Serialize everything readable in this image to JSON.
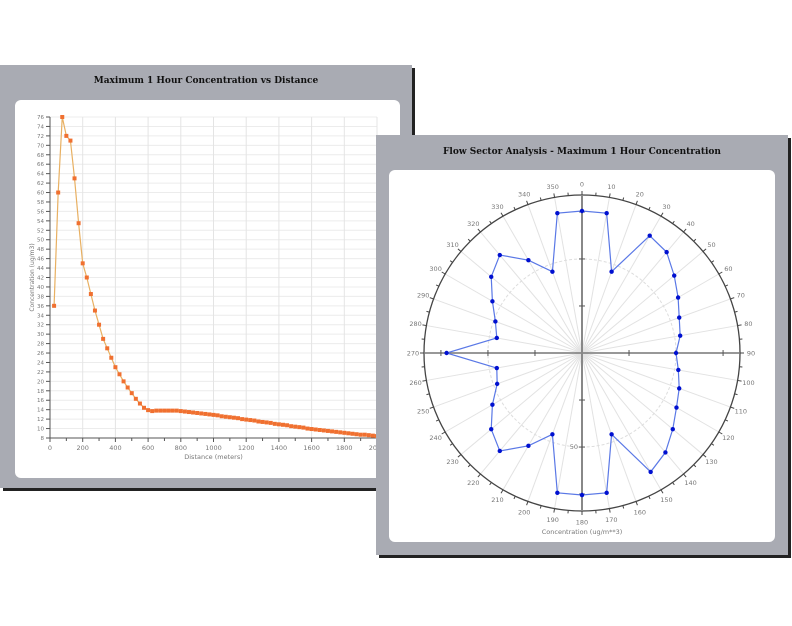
{
  "chart_data": [
    {
      "type": "line",
      "title": "Maximum 1 Hour Concentration vs Distance",
      "xlabel": "Distance (meters)",
      "ylabel": "Concentration (ug/m3)",
      "xlim": [
        0,
        2000
      ],
      "ylim": [
        8,
        76
      ],
      "xticks": [
        0,
        200,
        400,
        600,
        800,
        1000,
        1200,
        1400,
        1600,
        1800,
        2000
      ],
      "yticks_step": 2,
      "grid": true,
      "line_color": "#e8b062",
      "marker_color": "#f07030",
      "x": [
        25,
        50,
        75,
        100,
        125,
        150,
        175,
        200,
        225,
        250,
        275,
        300,
        325,
        350,
        375,
        400,
        425,
        450,
        475,
        500,
        525,
        550,
        575,
        600,
        625,
        650,
        675,
        700,
        725,
        750,
        775,
        800,
        825,
        850,
        875,
        900,
        925,
        950,
        975,
        1000,
        1025,
        1050,
        1075,
        1100,
        1125,
        1150,
        1175,
        1200,
        1225,
        1250,
        1275,
        1300,
        1325,
        1350,
        1375,
        1400,
        1425,
        1450,
        1475,
        1500,
        1525,
        1550,
        1575,
        1600,
        1625,
        1650,
        1675,
        1700,
        1725,
        1750,
        1775,
        1800,
        1825,
        1850,
        1875,
        1900,
        1925,
        1950,
        1975,
        2000
      ],
      "y": [
        36,
        60,
        76,
        72,
        71,
        63,
        53.5,
        45,
        42,
        38.5,
        35,
        32,
        29,
        27,
        25,
        23,
        21.5,
        20,
        18.7,
        17.5,
        16.3,
        15.3,
        14.4,
        13.9,
        13.7,
        13.8,
        13.8,
        13.8,
        13.8,
        13.8,
        13.8,
        13.7,
        13.6,
        13.5,
        13.4,
        13.3,
        13.2,
        13.1,
        13.0,
        12.9,
        12.8,
        12.6,
        12.5,
        12.4,
        12.3,
        12.2,
        12.0,
        11.9,
        11.8,
        11.7,
        11.5,
        11.4,
        11.3,
        11.2,
        11.0,
        10.9,
        10.8,
        10.7,
        10.5,
        10.4,
        10.3,
        10.2,
        10.0,
        9.9,
        9.8,
        9.7,
        9.6,
        9.5,
        9.4,
        9.3,
        9.2,
        9.1,
        9.0,
        8.9,
        8.8,
        8.7,
        8.7,
        8.6,
        8.5,
        8.4
      ]
    },
    {
      "type": "polar",
      "title": "Flow Sector Analysis - Maximum 1 Hour Concentration",
      "radial_label": "Concentration (ug/m**3)",
      "rlim": [
        0,
        84
      ],
      "radial_tick_labels": [
        50
      ],
      "angle_step": 10,
      "line_color": "#5a78e6",
      "marker_color": "#0010d0",
      "angles": [
        0,
        10,
        20,
        30,
        40,
        50,
        60,
        70,
        80,
        90,
        100,
        110,
        120,
        130,
        140,
        150,
        160,
        170,
        180,
        190,
        200,
        210,
        220,
        230,
        240,
        250,
        260,
        270,
        280,
        290,
        300,
        310,
        320,
        330,
        340,
        350
      ],
      "values": [
        75.5,
        75.5,
        46,
        72,
        70,
        64,
        59,
        55,
        53,
        50,
        52,
        55,
        58,
        63,
        69,
        73,
        46,
        75.5,
        75.5,
        75.5,
        46,
        57,
        68,
        63,
        55,
        48,
        46,
        72,
        46,
        49,
        55,
        63,
        68,
        57,
        46,
        75.5
      ]
    }
  ]
}
